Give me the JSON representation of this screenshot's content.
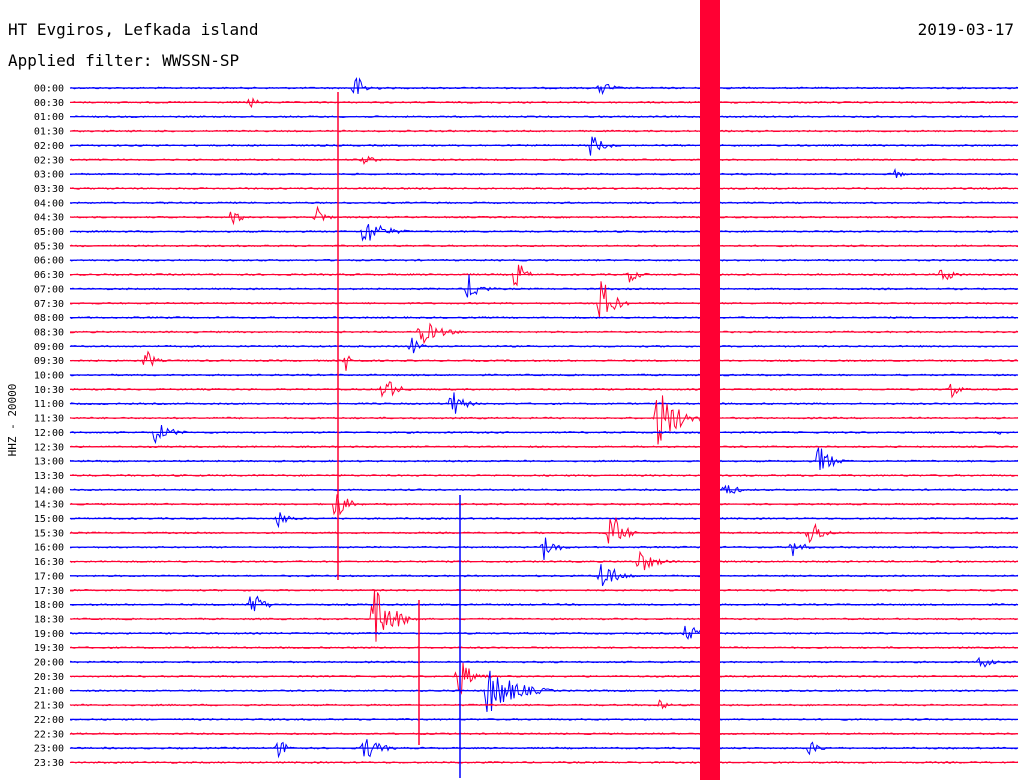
{
  "header": {
    "station": "HT Evgiros, Lefkada island",
    "date": "2019-03-17",
    "filter": "Applied filter: WWSSN-SP"
  },
  "chart_data": {
    "type": "line",
    "title": "HT Evgiros, Lefkada island",
    "ylabel": "HHZ - 20000",
    "colors": [
      "#0000ff",
      "#ff0033"
    ],
    "rows": [
      "00:00",
      "00:30",
      "01:00",
      "01:30",
      "02:00",
      "02:30",
      "03:00",
      "03:30",
      "04:00",
      "04:30",
      "05:00",
      "05:30",
      "06:00",
      "06:30",
      "07:00",
      "07:30",
      "08:00",
      "08:30",
      "09:00",
      "09:30",
      "10:00",
      "10:30",
      "11:00",
      "11:30",
      "12:00",
      "12:30",
      "13:00",
      "13:30",
      "14:00",
      "14:30",
      "15:00",
      "15:30",
      "16:00",
      "16:30",
      "17:00",
      "17:30",
      "18:00",
      "18:30",
      "19:00",
      "19:30",
      "20:00",
      "20:30",
      "21:00",
      "21:30",
      "22:00",
      "22:30",
      "23:00",
      "23:30"
    ],
    "events": [
      {
        "row": 0,
        "pos": 0.3,
        "amp": 16,
        "dur": 0.03
      },
      {
        "row": 0,
        "pos": 0.56,
        "amp": 9,
        "dur": 0.03
      },
      {
        "row": 1,
        "pos": 0.19,
        "amp": 7,
        "dur": 0.02
      },
      {
        "row": 4,
        "pos": 0.55,
        "amp": 14,
        "dur": 0.03
      },
      {
        "row": 5,
        "pos": 0.31,
        "amp": 6,
        "dur": 0.03
      },
      {
        "row": 6,
        "pos": 0.87,
        "amp": 6,
        "dur": 0.02
      },
      {
        "row": 9,
        "pos": 0.17,
        "amp": 9,
        "dur": 0.03
      },
      {
        "row": 9,
        "pos": 0.26,
        "amp": 14,
        "dur": 0.02
      },
      {
        "row": 10,
        "pos": 0.31,
        "amp": 16,
        "dur": 0.05
      },
      {
        "row": 13,
        "pos": 0.47,
        "amp": 22,
        "dur": 0.02
      },
      {
        "row": 13,
        "pos": 0.59,
        "amp": 8,
        "dur": 0.03
      },
      {
        "row": 13,
        "pos": 0.92,
        "amp": 10,
        "dur": 0.03
      },
      {
        "row": 14,
        "pos": 0.42,
        "amp": 16,
        "dur": 0.03
      },
      {
        "row": 15,
        "pos": 0.56,
        "amp": 30,
        "dur": 0.03
      },
      {
        "row": 17,
        "pos": 0.37,
        "amp": 14,
        "dur": 0.05
      },
      {
        "row": 18,
        "pos": 0.36,
        "amp": 12,
        "dur": 0.02
      },
      {
        "row": 19,
        "pos": 0.08,
        "amp": 14,
        "dur": 0.02
      },
      {
        "row": 19,
        "pos": 0.29,
        "amp": 12,
        "dur": 0.02
      },
      {
        "row": 21,
        "pos": 0.33,
        "amp": 18,
        "dur": 0.03
      },
      {
        "row": 21,
        "pos": 0.93,
        "amp": 10,
        "dur": 0.02
      },
      {
        "row": 22,
        "pos": 0.4,
        "amp": 20,
        "dur": 0.03
      },
      {
        "row": 23,
        "pos": 0.62,
        "amp": 36,
        "dur": 0.05
      },
      {
        "row": 24,
        "pos": 0.09,
        "amp": 12,
        "dur": 0.04
      },
      {
        "row": 24,
        "pos": 0.98,
        "amp": 8,
        "dur": 0.01
      },
      {
        "row": 26,
        "pos": 0.79,
        "amp": 20,
        "dur": 0.03
      },
      {
        "row": 28,
        "pos": 0.69,
        "amp": 10,
        "dur": 0.03
      },
      {
        "row": 29,
        "pos": 0.28,
        "amp": 18,
        "dur": 0.03
      },
      {
        "row": 30,
        "pos": 0.22,
        "amp": 9,
        "dur": 0.03
      },
      {
        "row": 31,
        "pos": 0.57,
        "amp": 28,
        "dur": 0.03
      },
      {
        "row": 31,
        "pos": 0.78,
        "amp": 18,
        "dur": 0.03
      },
      {
        "row": 32,
        "pos": 0.5,
        "amp": 14,
        "dur": 0.03
      },
      {
        "row": 32,
        "pos": 0.76,
        "amp": 12,
        "dur": 0.03
      },
      {
        "row": 33,
        "pos": 0.6,
        "amp": 14,
        "dur": 0.04
      },
      {
        "row": 34,
        "pos": 0.56,
        "amp": 18,
        "dur": 0.04
      },
      {
        "row": 36,
        "pos": 0.19,
        "amp": 18,
        "dur": 0.03
      },
      {
        "row": 37,
        "pos": 0.32,
        "amp": 34,
        "dur": 0.05
      },
      {
        "row": 38,
        "pos": 0.65,
        "amp": 12,
        "dur": 0.03
      },
      {
        "row": 40,
        "pos": 0.96,
        "amp": 8,
        "dur": 0.03
      },
      {
        "row": 41,
        "pos": 0.41,
        "amp": 24,
        "dur": 0.03
      },
      {
        "row": 42,
        "pos": 0.44,
        "amp": 28,
        "dur": 0.07
      },
      {
        "row": 43,
        "pos": 0.62,
        "amp": 6,
        "dur": 0.03
      },
      {
        "row": 46,
        "pos": 0.22,
        "amp": 10,
        "dur": 0.03
      },
      {
        "row": 46,
        "pos": 0.31,
        "amp": 14,
        "dur": 0.04
      },
      {
        "row": 46,
        "pos": 0.78,
        "amp": 8,
        "dur": 0.03
      }
    ]
  }
}
